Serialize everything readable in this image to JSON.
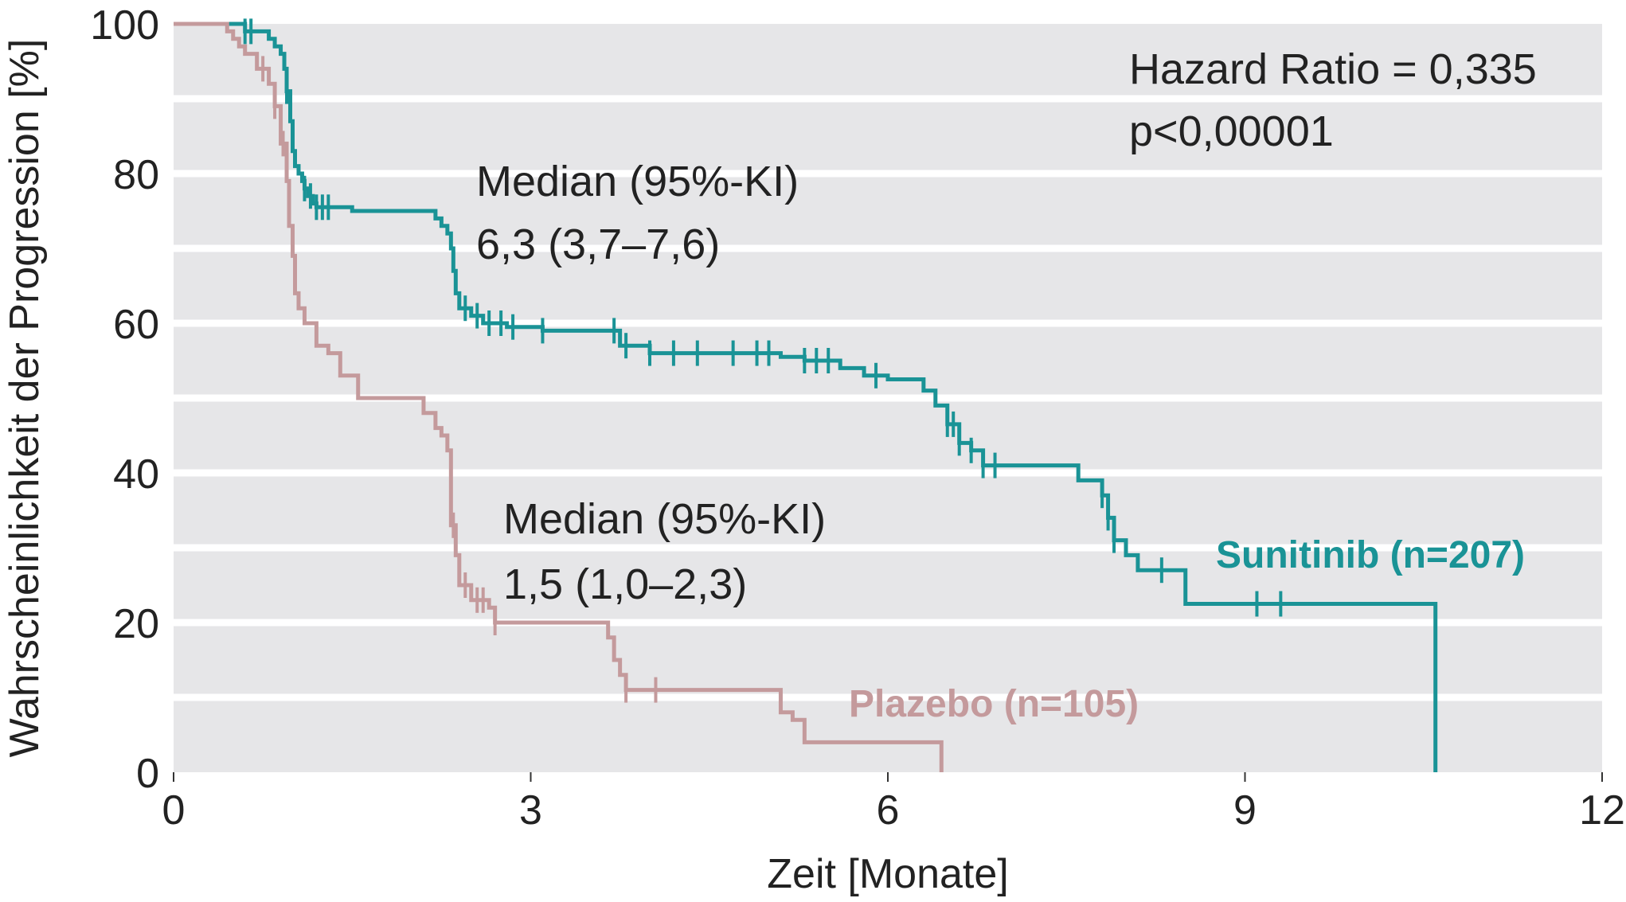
{
  "chart_data": {
    "type": "line",
    "xlabel": "Zeit [Monate]",
    "ylabel": "Wahrscheinlichkeit der Progression [%]",
    "xlim": [
      0,
      12
    ],
    "ylim": [
      0,
      100
    ],
    "x_ticks": [
      "0",
      "3",
      "6",
      "9",
      "12"
    ],
    "y_ticks": [
      "0",
      "20",
      "40",
      "60",
      "80",
      "100"
    ],
    "grid": true,
    "colors": {
      "background": "#e6e6e8",
      "grid": "#ffffff"
    },
    "series": [
      {
        "name": "Sunitinib (n=207)",
        "color": "#1a9396",
        "x": [
          0,
          0.5,
          0.6,
          0.8,
          0.85,
          0.9,
          0.93,
          0.95,
          0.98,
          1.0,
          1.02,
          1.05,
          1.08,
          1.1,
          1.13,
          1.17,
          1.2,
          1.3,
          1.5,
          1.9,
          2.2,
          2.25,
          2.3,
          2.33,
          2.35,
          2.37,
          2.4,
          2.5,
          2.6,
          2.8,
          3.1,
          3.7,
          3.75,
          4.0,
          5.0,
          5.1,
          5.3,
          5.6,
          5.8,
          6.0,
          6.2,
          6.3,
          6.4,
          6.5,
          6.6,
          6.7,
          6.8,
          7.4,
          7.6,
          7.8,
          7.85,
          7.9,
          8.0,
          8.1,
          8.5,
          9.0,
          10.5,
          10.6
        ],
        "y": [
          100,
          100,
          99,
          98,
          97,
          96,
          94,
          91,
          87,
          83,
          81,
          80,
          79,
          78,
          77,
          76,
          75.5,
          75.5,
          75,
          75,
          74,
          73,
          72,
          70,
          67,
          64,
          62,
          61,
          60,
          59.5,
          59,
          59,
          57,
          56,
          56,
          55.5,
          55,
          54,
          53,
          52.5,
          52.5,
          51,
          49,
          46.5,
          44,
          43,
          41,
          41,
          39,
          37,
          34,
          31,
          29,
          27,
          22.5,
          22.5,
          22.5,
          0
        ],
        "censored_x": [
          0.6,
          0.65,
          0.95,
          1.1,
          1.15,
          1.2,
          1.25,
          1.3,
          2.45,
          2.55,
          2.65,
          2.75,
          2.85,
          3.1,
          3.7,
          3.8,
          4.0,
          4.2,
          4.4,
          4.7,
          4.9,
          5.0,
          5.3,
          5.4,
          5.5,
          5.9,
          6.5,
          6.55,
          6.6,
          6.7,
          6.8,
          6.9,
          7.8,
          7.85,
          7.9,
          8.3,
          9.1,
          9.3
        ]
      },
      {
        "name": "Plazebo (n=105)",
        "color": "#c49a9c",
        "x": [
          0,
          0.4,
          0.45,
          0.5,
          0.55,
          0.6,
          0.7,
          0.8,
          0.85,
          0.9,
          0.95,
          0.97,
          1.0,
          1.02,
          1.05,
          1.1,
          1.2,
          1.3,
          1.4,
          1.55,
          2.1,
          2.2,
          2.25,
          2.3,
          2.33,
          2.37,
          2.4,
          2.5,
          2.65,
          2.7,
          3.5,
          3.65,
          3.7,
          3.75,
          3.8,
          4.0,
          5.0,
          5.1,
          5.2,
          5.3,
          6.0,
          6.3,
          6.45
        ],
        "y": [
          100,
          100,
          99,
          98,
          97,
          96,
          94,
          92,
          89,
          84,
          79,
          73,
          69,
          64,
          62,
          60,
          57,
          56,
          53,
          50,
          48,
          46,
          45,
          43,
          33,
          29,
          25,
          23,
          22,
          20,
          20,
          18,
          15,
          13,
          11,
          11,
          11,
          8,
          7,
          4,
          4,
          4,
          0
        ],
        "censored_x": [
          0.75,
          0.85,
          0.92,
          2.35,
          2.45,
          2.55,
          2.6,
          2.7,
          3.8,
          4.05
        ]
      }
    ],
    "annotations": {
      "hazard_ratio": "Hazard Ratio = 0,335",
      "p_value": "p<0,00001",
      "sunitinib_median_heading": "Median (95%-KI)",
      "sunitinib_median_value": "6,3 (3,7–7,6)",
      "placebo_median_heading": "Median (95%-KI)",
      "placebo_median_value": "1,5 (1,0–2,3)"
    }
  }
}
